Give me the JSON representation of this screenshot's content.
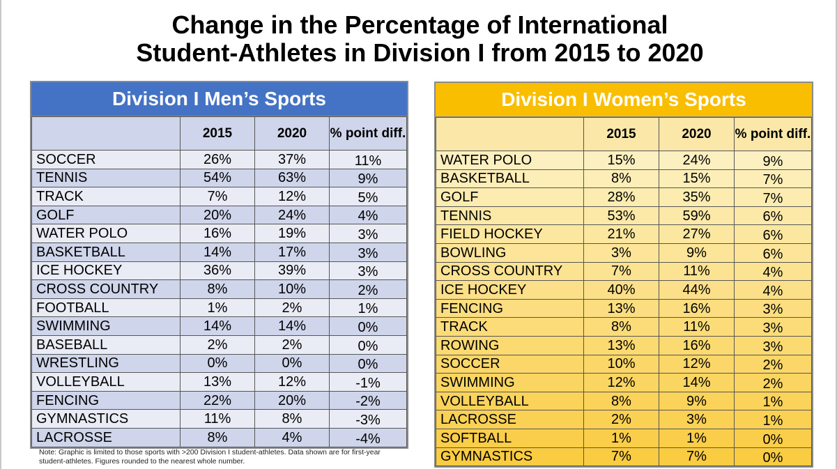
{
  "title_line1": "Change in the Percentage of International",
  "title_line2": "Student-Athletes in Division I from 2015 to 2020",
  "note": "Note: Graphic is limited to those sports with >200 Division I student-athletes. Data shown are for first-year student-athletes. Figures rounded to the nearest whole number.",
  "colors": {
    "men_header": "#4472c4",
    "women_header": "#f9be00"
  },
  "chart_data": [
    {
      "type": "table",
      "title": "Division I Men’s Sports",
      "columns": [
        "",
        "2015",
        "2020",
        "% point diff."
      ],
      "rows": [
        [
          "SOCCER",
          "26%",
          "37%",
          "11%"
        ],
        [
          "TENNIS",
          "54%",
          "63%",
          "9%"
        ],
        [
          "TRACK",
          "7%",
          "12%",
          "5%"
        ],
        [
          "GOLF",
          "20%",
          "24%",
          "4%"
        ],
        [
          "WATER POLO",
          "16%",
          "19%",
          "3%"
        ],
        [
          "BASKETBALL",
          "14%",
          "17%",
          "3%"
        ],
        [
          "ICE HOCKEY",
          "36%",
          "39%",
          "3%"
        ],
        [
          "CROSS COUNTRY",
          "8%",
          "10%",
          "2%"
        ],
        [
          "FOOTBALL",
          "1%",
          "2%",
          "1%"
        ],
        [
          "SWIMMING",
          "14%",
          "14%",
          "0%"
        ],
        [
          "BASEBALL",
          "2%",
          "2%",
          "0%"
        ],
        [
          "WRESTLING",
          "0%",
          "0%",
          "0%"
        ],
        [
          "VOLLEYBALL",
          "13%",
          "12%",
          "-1%"
        ],
        [
          "FENCING",
          "22%",
          "20%",
          "-2%"
        ],
        [
          "GYMNASTICS",
          "11%",
          "8%",
          "-3%"
        ],
        [
          "LACROSSE",
          "8%",
          "4%",
          "-4%"
        ]
      ]
    },
    {
      "type": "table",
      "title": "Division I Women’s Sports",
      "columns": [
        "",
        "2015",
        "2020",
        "% point diff."
      ],
      "rows": [
        [
          "WATER POLO",
          "15%",
          "24%",
          "9%"
        ],
        [
          "BASKETBALL",
          "8%",
          "15%",
          "7%"
        ],
        [
          "GOLF",
          "28%",
          "35%",
          "7%"
        ],
        [
          "TENNIS",
          "53%",
          "59%",
          "6%"
        ],
        [
          "FIELD HOCKEY",
          "21%",
          "27%",
          "6%"
        ],
        [
          "BOWLING",
          "3%",
          "9%",
          "6%"
        ],
        [
          "CROSS COUNTRY",
          "7%",
          "11%",
          "4%"
        ],
        [
          "ICE HOCKEY",
          "40%",
          "44%",
          "4%"
        ],
        [
          "FENCING",
          "13%",
          "16%",
          "3%"
        ],
        [
          "TRACK",
          "8%",
          "11%",
          "3%"
        ],
        [
          "ROWING",
          "13%",
          "16%",
          "3%"
        ],
        [
          "SOCCER",
          "10%",
          "12%",
          "2%"
        ],
        [
          "SWIMMING",
          "12%",
          "14%",
          "2%"
        ],
        [
          "VOLLEYBALL",
          "8%",
          "9%",
          "1%"
        ],
        [
          "LACROSSE",
          "2%",
          "3%",
          "1%"
        ],
        [
          "SOFTBALL",
          "1%",
          "1%",
          "0%"
        ],
        [
          "GYMNASTICS",
          "7%",
          "7%",
          "0%"
        ]
      ]
    }
  ]
}
